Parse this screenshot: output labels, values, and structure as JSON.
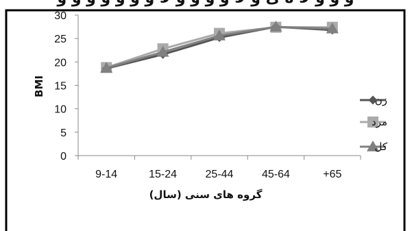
{
  "chart_data": {
    "type": "line",
    "categories": [
      "9-14",
      "15-24",
      "25-44",
      "45-64",
      "+65"
    ],
    "series": [
      {
        "name": "زن",
        "values": [
          18.6,
          21.6,
          25.2,
          27.5,
          26.8
        ],
        "color": "#555555",
        "marker": "diamond"
      },
      {
        "name": "مرد",
        "values": [
          18.8,
          22.8,
          26.1,
          27.4,
          27.4
        ],
        "color": "#aaaaaa",
        "marker": "square"
      },
      {
        "name": "کل",
        "values": [
          18.7,
          22.1,
          25.6,
          27.5,
          27.1
        ],
        "color": "#808080",
        "marker": "triangle"
      }
    ],
    "ylabel": "BMI",
    "xlabel": "گروه های سنی (سال)",
    "ylim": [
      0,
      30
    ],
    "yticks": [
      0,
      5,
      10,
      15,
      20,
      25,
      30
    ],
    "grid": false,
    "legend_position": "right"
  },
  "top_text": "و و و لا ه ی و لا و و و و لا و و و و و و و"
}
